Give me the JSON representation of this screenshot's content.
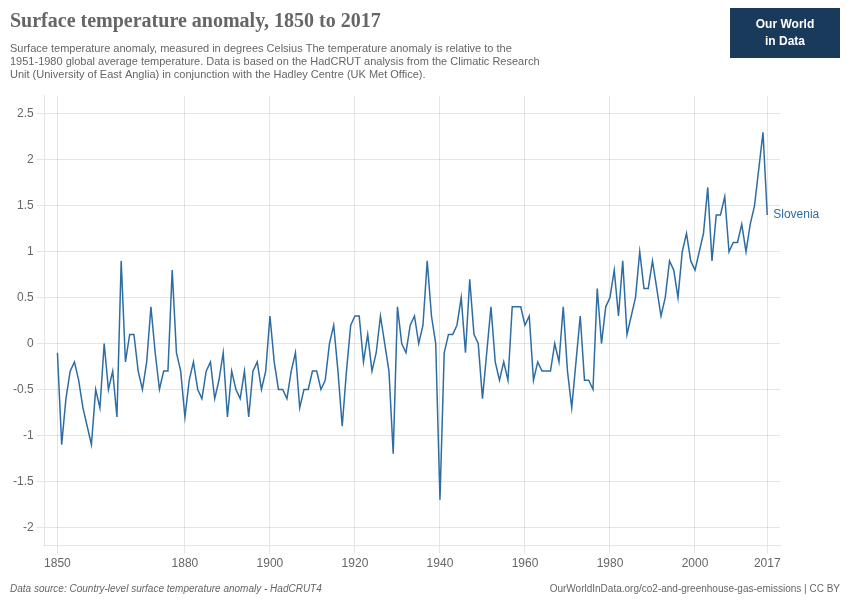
{
  "chart_data": {
    "type": "line",
    "title": "Surface temperature anomaly, 1850 to 2017",
    "subtitle": "Surface temperature anomaly, measured in degrees Celsius The temperature anomaly is relative to the\n1951-1980 global average temperature. Data is based on the HadCRUT analysis from the Climatic Research\nUnit (University of East Anglia) in conjunction with the Hadley Centre (UK Met Office).",
    "annotations": [
      "Data source: Country-level surface temperature anomaly - HadCRUT4",
      "OurWorldInData.org/co2-and-greenhouse-gas-emissions | CC BY"
    ],
    "logo": {
      "text": [
        "Our World",
        "in Data"
      ],
      "color": "#1a3a5c"
    },
    "x": [
      1850,
      1851,
      1852,
      1853,
      1854,
      1855,
      1856,
      1857,
      1858,
      1859,
      1860,
      1861,
      1862,
      1863,
      1864,
      1865,
      1866,
      1867,
      1868,
      1869,
      1870,
      1871,
      1872,
      1873,
      1874,
      1875,
      1876,
      1877,
      1878,
      1879,
      1880,
      1881,
      1882,
      1883,
      1884,
      1885,
      1886,
      1887,
      1888,
      1889,
      1890,
      1891,
      1892,
      1893,
      1894,
      1895,
      1896,
      1897,
      1898,
      1899,
      1900,
      1901,
      1902,
      1903,
      1904,
      1905,
      1906,
      1907,
      1908,
      1909,
      1910,
      1911,
      1912,
      1913,
      1914,
      1915,
      1916,
      1917,
      1918,
      1919,
      1920,
      1921,
      1922,
      1923,
      1924,
      1925,
      1926,
      1927,
      1928,
      1929,
      1930,
      1931,
      1932,
      1933,
      1934,
      1935,
      1936,
      1937,
      1938,
      1939,
      1940,
      1941,
      1942,
      1943,
      1944,
      1945,
      1946,
      1947,
      1948,
      1949,
      1950,
      1951,
      1952,
      1953,
      1954,
      1955,
      1956,
      1957,
      1958,
      1959,
      1960,
      1961,
      1962,
      1963,
      1964,
      1965,
      1966,
      1967,
      1968,
      1969,
      1970,
      1971,
      1972,
      1973,
      1974,
      1975,
      1976,
      1977,
      1978,
      1979,
      1980,
      1981,
      1982,
      1983,
      1984,
      1985,
      1986,
      1987,
      1988,
      1989,
      1990,
      1991,
      1992,
      1993,
      1994,
      1995,
      1996,
      1997,
      1998,
      1999,
      2000,
      2001,
      2002,
      2003,
      2004,
      2005,
      2006,
      2007,
      2008,
      2009,
      2010,
      2011,
      2012,
      2013,
      2014,
      2015,
      2016,
      2017
    ],
    "series": [
      {
        "name": "Slovenia",
        "color": "#2E6DA4",
        "values": [
          -0.1,
          -1.1,
          -0.6,
          -0.3,
          -0.2,
          -0.4,
          -0.7,
          -0.9,
          -1.1,
          -0.5,
          -0.7,
          0.0,
          -0.5,
          -0.3,
          -0.8,
          0.9,
          -0.2,
          0.1,
          0.1,
          -0.3,
          -0.5,
          -0.2,
          0.4,
          -0.1,
          -0.5,
          -0.3,
          -0.3,
          0.8,
          -0.1,
          -0.3,
          -0.8,
          -0.4,
          -0.2,
          -0.5,
          -0.6,
          -0.3,
          -0.2,
          -0.6,
          -0.4,
          -0.1,
          -0.8,
          -0.3,
          -0.5,
          -0.6,
          -0.3,
          -0.8,
          -0.3,
          -0.2,
          -0.5,
          -0.3,
          0.3,
          -0.2,
          -0.5,
          -0.5,
          -0.6,
          -0.3,
          -0.1,
          -0.7,
          -0.5,
          -0.5,
          -0.3,
          -0.3,
          -0.5,
          -0.4,
          0.0,
          0.2,
          -0.3,
          -0.9,
          -0.3,
          0.2,
          0.3,
          0.3,
          -0.2,
          0.1,
          -0.3,
          -0.1,
          0.3,
          0.0,
          -0.3,
          -1.2,
          0.4,
          0.0,
          -0.1,
          0.2,
          0.3,
          0.0,
          0.2,
          0.9,
          0.3,
          0.0,
          -1.7,
          -0.1,
          0.1,
          0.1,
          0.2,
          0.5,
          -0.1,
          0.7,
          0.1,
          0.0,
          -0.6,
          -0.1,
          0.4,
          -0.2,
          -0.4,
          -0.2,
          -0.4,
          0.4,
          0.4,
          0.4,
          0.2,
          0.3,
          -0.4,
          -0.2,
          -0.3,
          -0.3,
          -0.3,
          0.0,
          -0.2,
          0.4,
          -0.3,
          -0.7,
          -0.2,
          0.3,
          -0.4,
          -0.4,
          -0.5,
          0.6,
          0.0,
          0.4,
          0.5,
          0.8,
          0.3,
          0.9,
          0.1,
          0.3,
          0.5,
          1.0,
          0.6,
          0.6,
          0.9,
          0.6,
          0.3,
          0.5,
          0.9,
          0.8,
          0.5,
          1.0,
          1.2,
          0.9,
          0.8,
          1.0,
          1.2,
          1.7,
          0.9,
          1.4,
          1.4,
          1.6,
          1.0,
          1.1,
          1.1,
          1.3,
          1.0,
          1.3,
          1.5,
          1.9,
          2.3,
          1.4
        ]
      }
    ],
    "xlim": [
      1847,
      2020
    ],
    "ylim": [
      -2.2,
      2.7
    ],
    "xticks": [
      1850,
      1880,
      1900,
      1920,
      1940,
      1960,
      1980,
      2000,
      2017
    ],
    "yticks": [
      -2,
      -1.5,
      -1,
      -0.5,
      0,
      0.5,
      1,
      1.5,
      2,
      2.5
    ],
    "grid": true
  }
}
